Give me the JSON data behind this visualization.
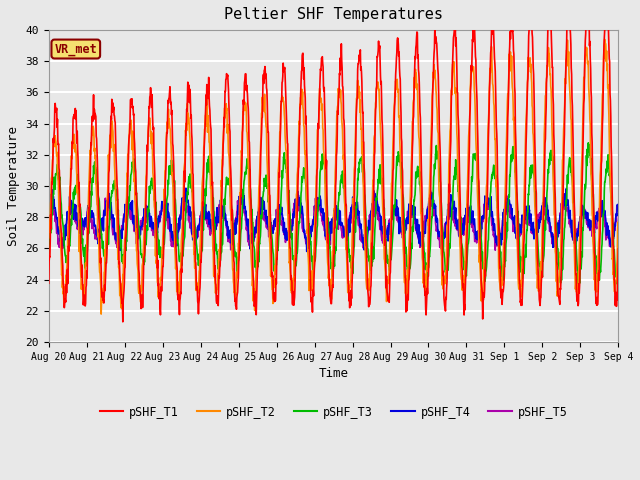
{
  "title": "Peltier SHF Temperatures",
  "xlabel": "Time",
  "ylabel": "Soil Temperature",
  "ylim": [
    20,
    40
  ],
  "bg_color": "#e8e8e8",
  "plot_bg_color": "#e8e8e8",
  "grid_color": "white",
  "annotation_text": "VR_met",
  "annotation_bg": "#f5e070",
  "annotation_border": "#8b0000",
  "annotation_text_color": "#8b0000",
  "lines": {
    "pSHF_T1": {
      "color": "#ff0000",
      "lw": 1.2
    },
    "pSHF_T2": {
      "color": "#ff8800",
      "lw": 1.2
    },
    "pSHF_T3": {
      "color": "#00bb00",
      "lw": 1.2
    },
    "pSHF_T4": {
      "color": "#0000dd",
      "lw": 1.2
    },
    "pSHF_T5": {
      "color": "#aa00aa",
      "lw": 1.2
    }
  },
  "font_family": "monospace",
  "num_points": 1500,
  "xtick_labels": [
    "Aug 20",
    "Aug 21",
    "Aug 22",
    "Aug 23",
    "Aug 24",
    "Aug 25",
    "Aug 26",
    "Aug 27",
    "Aug 28",
    "Aug 29",
    "Aug 30",
    "Aug 31",
    "Sep 1",
    "Sep 2",
    "Sep 3",
    "Sep 4"
  ]
}
